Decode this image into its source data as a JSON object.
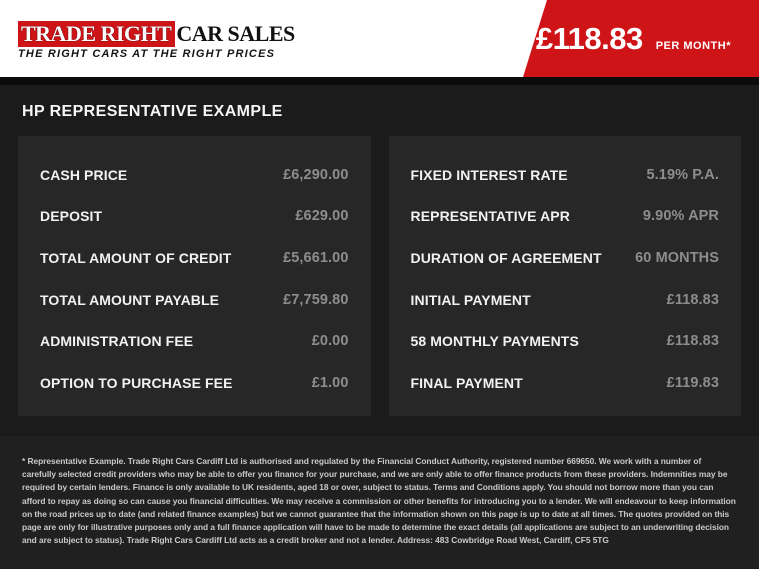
{
  "brand": {
    "name_primary": "TRADE RIGHT",
    "name_secondary": "CAR SALES",
    "tagline": "THE RIGHT CARS AT THE RIGHT PRICES"
  },
  "banner": {
    "monthly_price": "£118.83",
    "suffix": "PER MONTH*"
  },
  "heading": "HP REPRESENTATIVE EXAMPLE",
  "finance": {
    "left": [
      {
        "label": "CASH PRICE",
        "value": "£6,290.00"
      },
      {
        "label": "DEPOSIT",
        "value": "£629.00"
      },
      {
        "label": "TOTAL AMOUNT OF CREDIT",
        "value": "£5,661.00"
      },
      {
        "label": "TOTAL AMOUNT PAYABLE",
        "value": "£7,759.80"
      },
      {
        "label": "ADMINISTRATION FEE",
        "value": "£0.00"
      },
      {
        "label": "OPTION TO PURCHASE FEE",
        "value": "£1.00"
      }
    ],
    "right": [
      {
        "label": "FIXED INTEREST RATE",
        "value": "5.19% P.A."
      },
      {
        "label": "REPRESENTATIVE APR",
        "value": "9.90% APR"
      },
      {
        "label": "DURATION OF AGREEMENT",
        "value": "60 MONTHS"
      },
      {
        "label": "INITIAL PAYMENT",
        "value": "£118.83"
      },
      {
        "label": "58 MONTHLY PAYMENTS",
        "value": "£118.83"
      },
      {
        "label": "FINAL PAYMENT",
        "value": "£119.83"
      }
    ]
  },
  "footer": {
    "disclaimer": "* Representative Example. Trade Right Cars Cardiff Ltd is authorised and regulated by the Financial Conduct Authority, registered number 669650. We work with a number of carefully selected credit providers who may be able to offer you finance for your purchase, and we are only able to offer finance products from these providers. Indemnities may be required by certain lenders. Finance is only available to UK residents, aged 18 or over, subject to status. Terms and Conditions apply. You should not borrow more than you can afford to repay as doing so can cause you financial difficulties. We may receive a commission or other benefits for introducing you to a lender. We will endeavour to keep information on the road prices up to date (and related finance examples) but we cannot guarantee that the information shown on this page is up to date at all times. The quotes provided on this page are only for illustrative purposes only and a full finance application will have to be made to determine the exact details (all applications are subject to an underwriting decision and are subject to status). Trade Right Cars Cardiff Ltd acts as a credit broker and not a lender. Address: 483 Cowbridge Road West, Cardiff, CF5 5TG"
  },
  "colors": {
    "brand_red": "#cf1418",
    "page_bg": "#1b1b1b",
    "panel_bg": "#272727",
    "footer_bg": "#202020",
    "value_grey": "#8d8d8d"
  }
}
